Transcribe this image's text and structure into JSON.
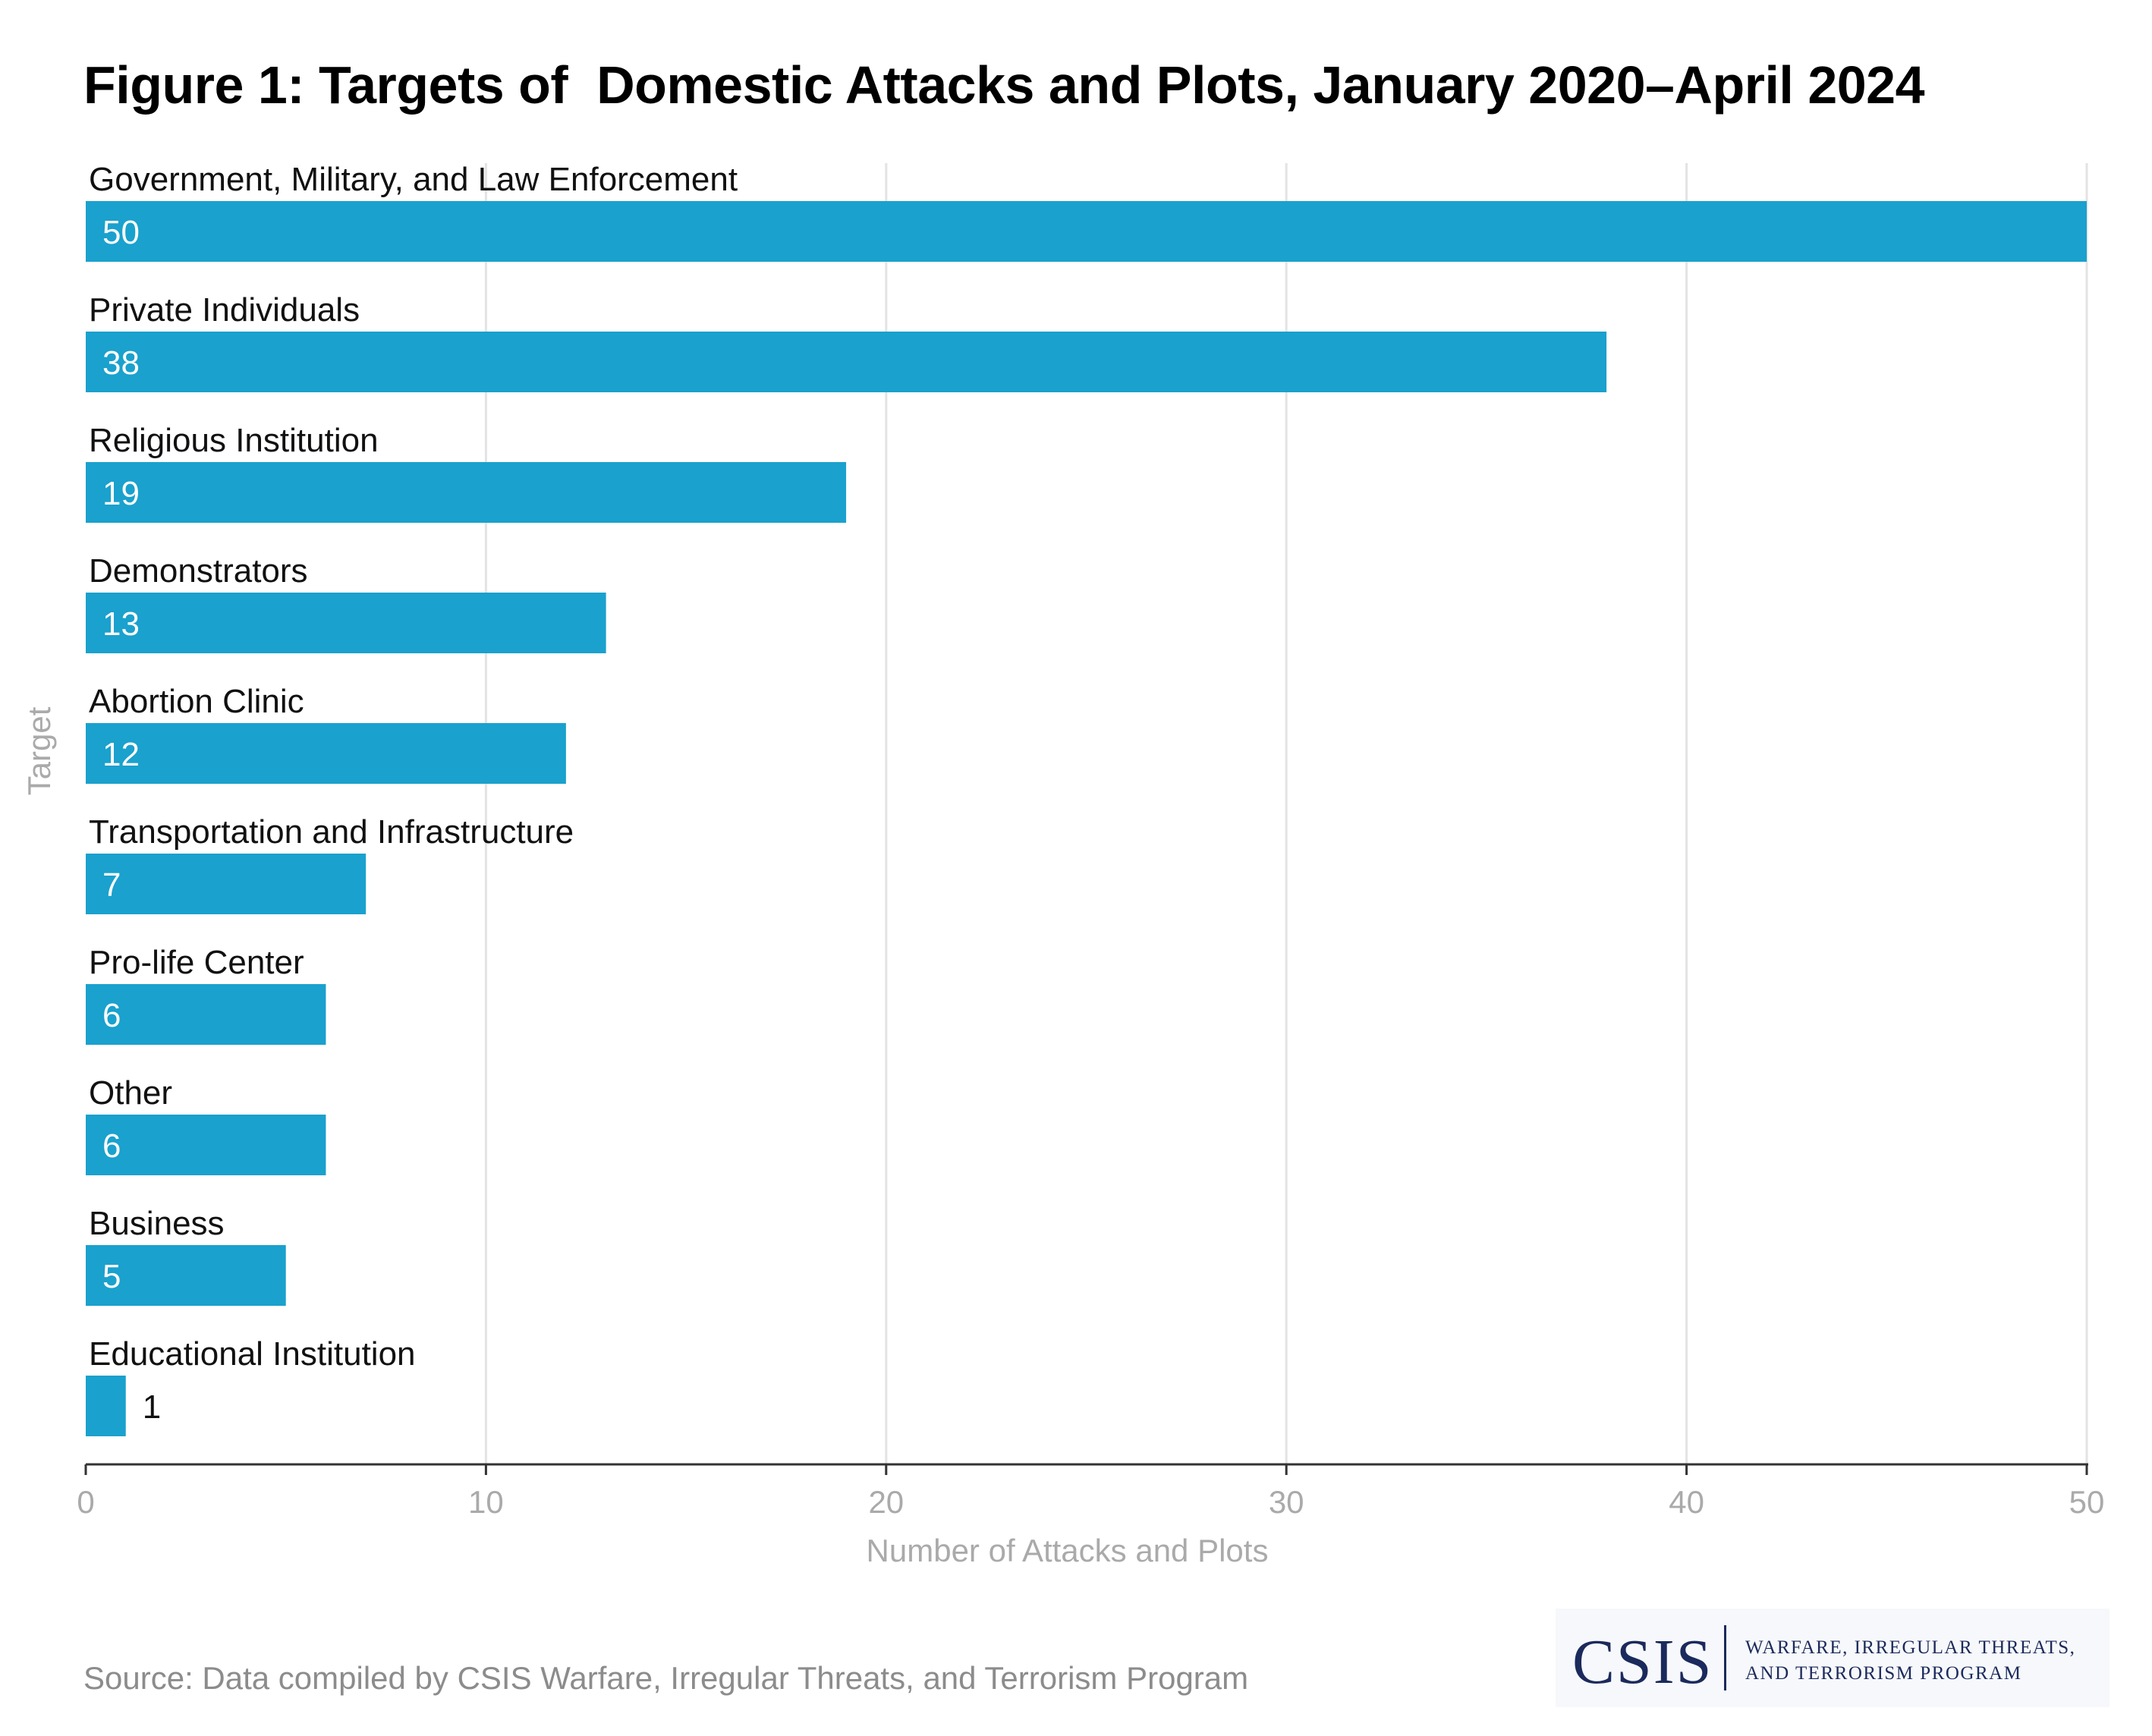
{
  "chart_data": {
    "type": "bar",
    "orientation": "horizontal",
    "title": "Figure 1: Targets of  Domestic Attacks and Plots, January 2020–April 2024",
    "categories": [
      "Government, Military, and Law Enforcement",
      "Private Individuals",
      "Religious Institution",
      "Demonstrators",
      "Abortion Clinic",
      "Transportation and Infrastructure",
      "Pro-life Center",
      "Other",
      "Business",
      "Educational Institution"
    ],
    "values": [
      50,
      38,
      19,
      13,
      12,
      7,
      6,
      6,
      5,
      1
    ],
    "value_labels": [
      "50",
      "38",
      "19",
      "13",
      "12",
      "7",
      "6",
      "6",
      "5",
      "1"
    ],
    "xlabel": "Number of Attacks and Plots",
    "ylabel": "Target",
    "xlim": [
      0,
      50
    ],
    "xticks": [
      0,
      10,
      20,
      30,
      40,
      50
    ],
    "xtick_labels": [
      "0",
      "10",
      "20",
      "30",
      "40",
      "50"
    ],
    "grid": true,
    "bar_color": "#1aa1cd"
  },
  "source": "Source: Data compiled by CSIS Warfare, Irregular Threats, and Terrorism Program",
  "logo": {
    "mark": "CSIS",
    "line1": "WARFARE, IRREGULAR THREATS,",
    "line2": "AND TERRORISM PROGRAM",
    "color": "#1b2a5c"
  },
  "colors": {
    "bar": "#1aa1cd",
    "inside_label": "#ffffff",
    "outside_label": "#111111",
    "grid": "#e3e3e3",
    "axis": "#333333",
    "muted_text": "#aaaaaa"
  }
}
